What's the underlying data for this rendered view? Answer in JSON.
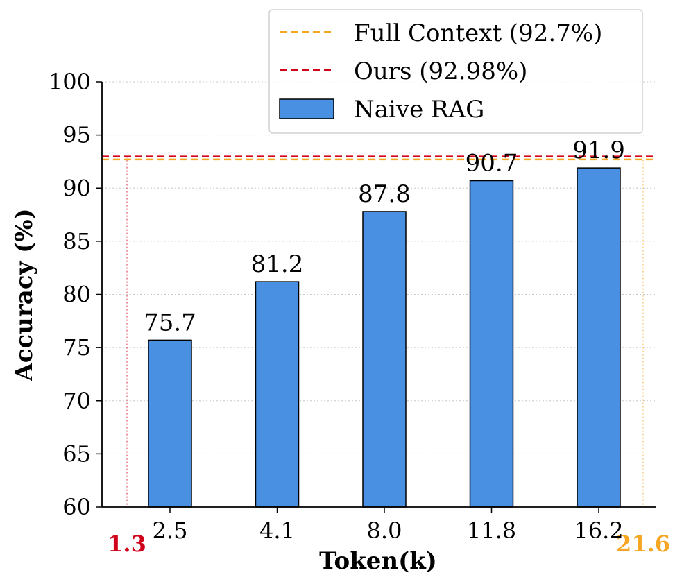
{
  "chart_data": {
    "type": "bar",
    "title": "",
    "xlabel": "Token(k)",
    "ylabel": "Accuracy (%)",
    "ylim": [
      60,
      100
    ],
    "yticks": [
      60,
      65,
      70,
      75,
      80,
      85,
      90,
      95,
      100
    ],
    "grid": "horizontal dotted",
    "legend_position": "top-right",
    "categories": [
      "2.5",
      "4.1",
      "8.0",
      "11.8",
      "16.2"
    ],
    "series": [
      {
        "name": "Naive RAG",
        "values": [
          75.7,
          81.2,
          87.8,
          90.7,
          91.9
        ],
        "labels": [
          "75.7",
          "81.2",
          "87.8",
          "90.7",
          "91.9"
        ],
        "color": "#4a90e2"
      }
    ],
    "reference_lines": [
      {
        "name": "Full Context (92.7%)",
        "value": 92.7,
        "color": "#f5a623",
        "style": "dashed"
      },
      {
        "name": "Ours (92.98%)",
        "value": 92.98,
        "color": "#d0021b",
        "style": "dashed"
      }
    ],
    "token_markers": [
      {
        "label": "1.3",
        "value": 1.3,
        "color": "#d0021b"
      },
      {
        "label": "21.6",
        "value": 21.6,
        "color": "#f5a623"
      }
    ]
  }
}
